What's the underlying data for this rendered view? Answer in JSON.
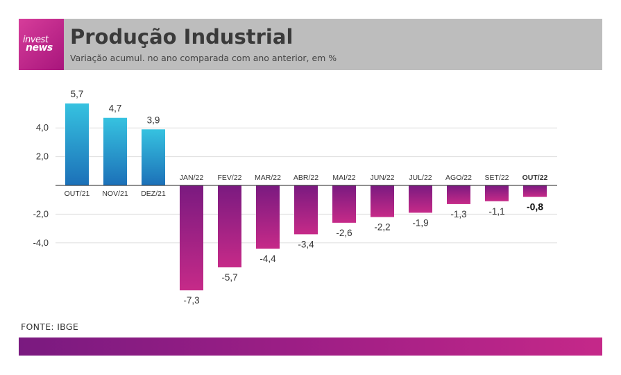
{
  "header": {
    "logo_line1": "invest",
    "logo_line2": "news",
    "title": "Produção Industrial",
    "subtitle": "Variação acumul. no ano comparada com ano anterior, em %"
  },
  "source": "FONTE: IBGE",
  "colors": {
    "positive_top": "#36c2e0",
    "positive_bottom": "#1c70b8",
    "negative_top": "#7a1a80",
    "negative_bottom": "#c62a88",
    "header_bg": "#bdbdbd"
  },
  "chart_data": {
    "type": "bar",
    "categories": [
      "OUT/21",
      "NOV/21",
      "DEZ/21",
      "JAN/22",
      "FEV/22",
      "MAR/22",
      "ABR/22",
      "MAI/22",
      "JUN/22",
      "JUL/22",
      "AGO/22",
      "SET/22",
      "OUT/22"
    ],
    "values": [
      5.7,
      4.7,
      3.9,
      -7.3,
      -5.7,
      -4.4,
      -3.4,
      -2.6,
      -2.2,
      -1.9,
      -1.3,
      -1.1,
      -0.8
    ],
    "value_labels": [
      "5,7",
      "4,7",
      "3,9",
      "-7,3",
      "-5,7",
      "-4,4",
      "-3,4",
      "-2,6",
      "-2,2",
      "-1,9",
      "-1,3",
      "-1,1",
      "-0,8"
    ],
    "highlight_index": 12,
    "yticks": [
      4.0,
      2.0,
      -2.0,
      -4.0
    ],
    "ytick_labels": [
      "4,0",
      "2,0",
      "-2,0",
      "-4,0"
    ],
    "ylim": [
      -7.3,
      5.7
    ],
    "grid": true
  }
}
